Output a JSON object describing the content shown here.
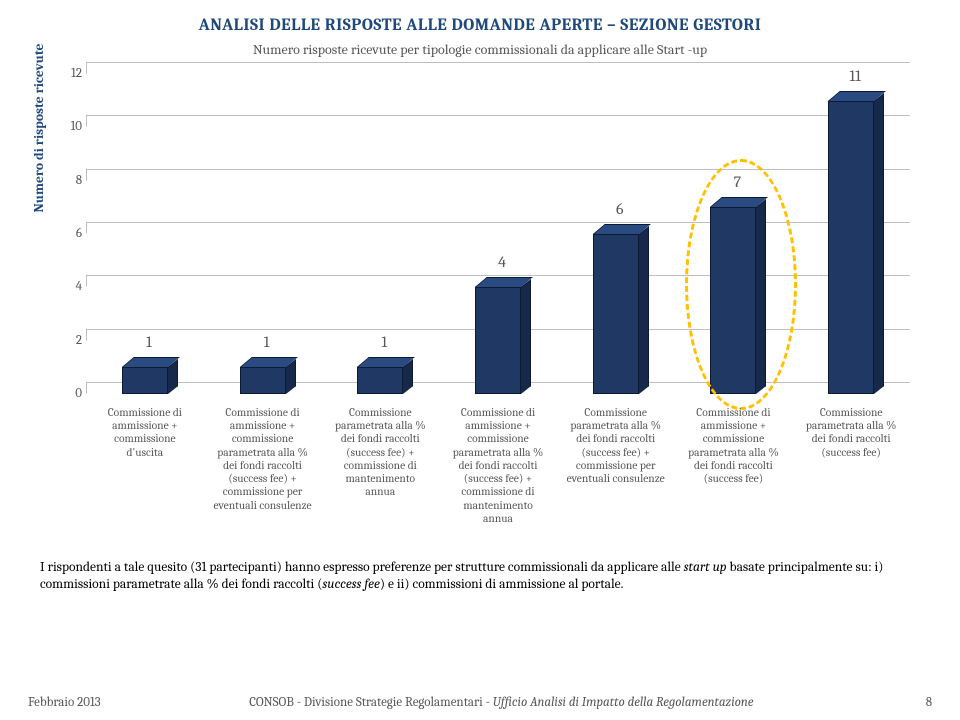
{
  "title": "ANALISI DELLE RISPOSTE ALLE DOMANDE APERTE – SEZIONE GESTORI",
  "subtitle": "Numero risposte ricevute per tipologie commissionali da applicare alle Start -up",
  "chart": {
    "type": "bar",
    "ylabel": "Numero di risposte ricevute",
    "ylim": [
      0,
      12
    ],
    "ytick_step": 2,
    "yticks": [
      "0",
      "2",
      "4",
      "6",
      "8",
      "10",
      "12"
    ],
    "bar_color": "#1f3864",
    "bar_side_color": "#17294a",
    "bar_top_color": "#2a4a82",
    "grid_color": "#bfbfbf",
    "label_color": "#585858",
    "label_fontsize": 16,
    "categories": [
      "Commissione di ammissione + commissione d'uscita",
      "Commissione di ammissione + commissione parametrata alla % dei fondi raccolti (success fee) + commissione per eventuali consulenze",
      "Commissione parametrata alla % dei fondi raccolti (success fee) + commissione di mantenimento annua",
      "Commissione di ammissione + commissione parametrata alla % dei fondi raccolti (success fee) + commissione di mantenimento annua",
      "Commissione parametrata alla % dei fondi raccolti (success fee) + commissione per eventuali consulenze",
      "Commissione di ammissione + commissione parametrata alla % dei fondi raccolti (success fee)",
      "Commissione parametrata alla % dei fondi raccolti (success fee)"
    ],
    "values": [
      1,
      1,
      1,
      4,
      6,
      7,
      11
    ],
    "highlight_index": 5,
    "highlight_color": "#ffc000"
  },
  "note_parts": {
    "p1": "I rispondenti a tale quesito (31 partecipanti) hanno espresso preferenze per strutture commissionali da applicare alle ",
    "i1": "start up",
    "p2": " basate principalmente su: i) commissioni parametrate alla % dei fondi raccolti (",
    "i2": "success fee",
    "p3": ") e ii) commissioni di ammissione al portale."
  },
  "footer": {
    "left": "Febbraio 2013",
    "mid_plain": "CONSOB - Divisione Strategie Regolamentari - ",
    "mid_italic": "Ufficio Analisi di Impatto della Regolamentazione",
    "page": "8"
  }
}
